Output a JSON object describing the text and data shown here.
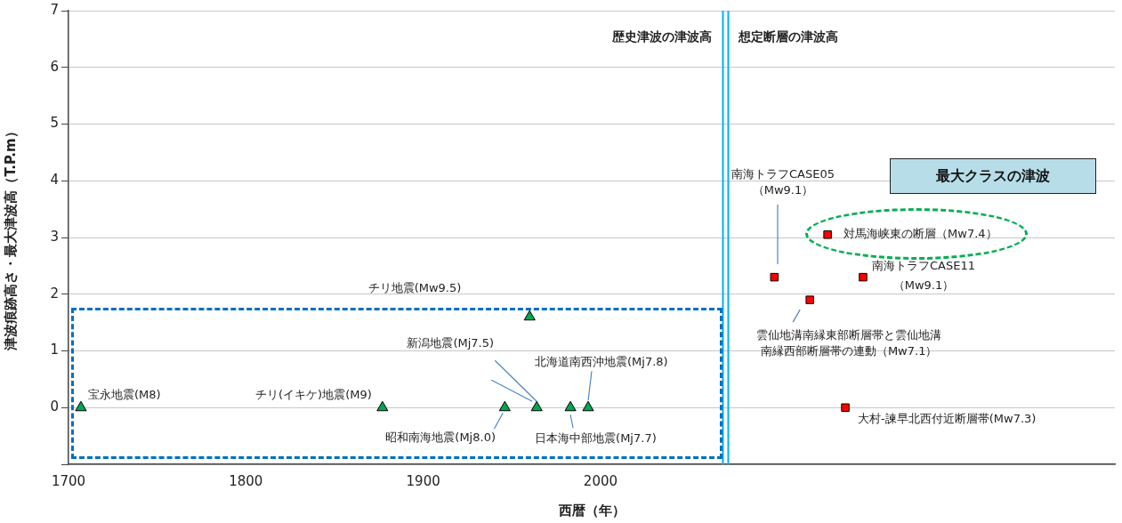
{
  "chart_data": {
    "type": "scatter",
    "xlabel": "西暦（年）",
    "ylabel": "津波痕跡高さ・最大津波高（T.P.m）",
    "xlim": [
      1700,
      2290
    ],
    "xticks": [
      1700,
      1800,
      1900,
      2000
    ],
    "ylim": [
      -1,
      7
    ],
    "yticks": [
      {
        "value": -1,
        "label": null
      },
      0,
      1,
      2,
      3,
      4,
      5,
      6,
      7
    ],
    "grid": "y",
    "legend": false,
    "series": [
      {
        "color": "#00a650",
        "marker": "triangle",
        "x": [
          1707,
          1877,
          1946,
          1964,
          1983,
          1993,
          1960
        ],
        "values": [
          0,
          0,
          0,
          0,
          0,
          0,
          1.6
        ]
      },
      {
        "color": "#ff0000",
        "marker": "square",
        "x": [
          2098,
          2118,
          2128,
          2148,
          2138
        ],
        "values": [
          2.3,
          1.9,
          3.05,
          2.3,
          0
        ]
      }
    ],
    "ref_lines": [
      {
        "axis": "x",
        "value": 2069,
        "color": "#00b0f0"
      },
      {
        "axis": "x",
        "value": 2072,
        "color": "#00b0f0"
      }
    ],
    "annotations": [
      "歴史津波の津波高",
      "想定断層の津波高",
      "最大クラスの津波",
      {
        "text": "宝永地震(M8)",
        "x": 1707,
        "y": 0
      },
      {
        "text": "チリ(イキケ)地震(M9)",
        "x": 1877,
        "y": 0
      },
      {
        "text": "昭和南海地震(Mj8.0)",
        "x": 1946,
        "y": 0
      },
      {
        "text": "新潟地震(Mj7.5)",
        "x": 1964,
        "y": 0
      },
      {
        "text": "北海道南西沖地震(Mj7.8)",
        "x": 1993,
        "y": 0
      },
      {
        "text": "日本海中部地震(Mj7.7)",
        "x": 1983,
        "y": 0
      },
      "チリ地震(Mw9.5)",
      "南海トラフCASE05\n（Mw9.1）",
      {
        "text": "雲仙地溝南縁東部断層帯と雲仙地溝南縁西部断層帯の連動（Mw7.1）",
        "x": 2118,
        "y": 1.9
      },
      {
        "text": "対馬海峡東の断層（Mw7.4）",
        "x": 2128,
        "y": 3.05
      },
      {
        "text": "南海トラフCASE11\n（Mw9.1）",
        "x": 2148,
        "y": 2.3
      },
      {
        "text": "大村-諫早北西付近断層帯(Mw7.3)",
        "x": 2138,
        "y": 0
      }
    ]
  }
}
